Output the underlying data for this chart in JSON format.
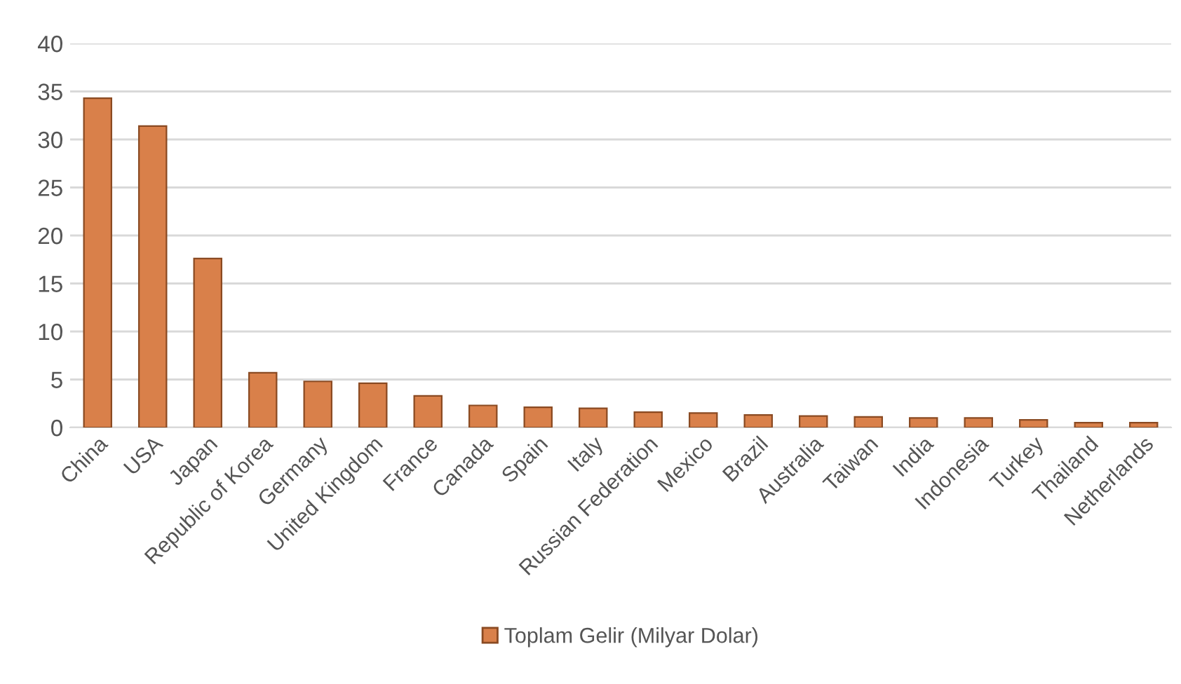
{
  "chart_data": {
    "type": "bar",
    "categories": [
      "China",
      "USA",
      "Japan",
      "Republic of Korea",
      "Germany",
      "United Kingdom",
      "France",
      "Canada",
      "Spain",
      "Italy",
      "Russian Federation",
      "Mexico",
      "Brazil",
      "Australia",
      "Taiwan",
      "India",
      "Indonesia",
      "Turkey",
      "Thailand",
      "Netherlands"
    ],
    "series": [
      {
        "name": "Toplam Gelir (Milyar Dolar)",
        "color": "#d9804a",
        "values": [
          34.3,
          31.4,
          17.6,
          5.7,
          4.8,
          4.6,
          3.3,
          2.3,
          2.1,
          2.0,
          1.6,
          1.5,
          1.3,
          1.2,
          1.1,
          1.0,
          1.0,
          0.8,
          0.5,
          0.5
        ]
      }
    ],
    "ylim": [
      0,
      40
    ],
    "yticks": [
      0,
      5,
      10,
      15,
      20,
      25,
      30,
      35,
      40
    ],
    "grid": "y",
    "legend": "bottom"
  }
}
